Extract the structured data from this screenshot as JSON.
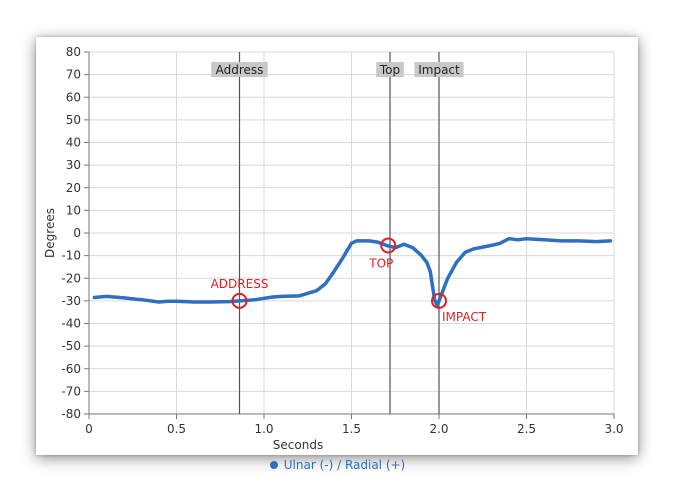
{
  "chart_data": {
    "type": "line",
    "title": "",
    "xlabel": "Seconds",
    "ylabel": "Degrees",
    "xlim": [
      0,
      3.0
    ],
    "ylim": [
      -80,
      80
    ],
    "x_ticks": [
      0,
      0.5,
      1.0,
      1.5,
      2.0,
      2.5,
      3.0
    ],
    "x_tick_labels": [
      "0",
      "0.5",
      "1.0",
      "1.5",
      "2.0",
      "2.5",
      "3.0"
    ],
    "y_ticks": [
      80,
      70,
      60,
      50,
      40,
      30,
      20,
      10,
      0,
      -10,
      -20,
      -30,
      -40,
      -50,
      -60,
      -70,
      -80
    ],
    "y_tick_labels": [
      "80",
      "70",
      "60",
      "50",
      "40",
      "30",
      "20",
      "10",
      "0",
      "-10",
      "-20",
      "-30",
      "-40",
      "-50",
      "-60",
      "-70",
      "-80"
    ],
    "grid": true,
    "legend_position": "bottom",
    "series": [
      {
        "name": "Ulnar (-) / Radial (+)",
        "color": "#2e6fbf",
        "x": [
          0.03,
          0.1,
          0.2,
          0.3,
          0.4,
          0.45,
          0.5,
          0.6,
          0.7,
          0.8,
          0.86,
          0.95,
          1.05,
          1.1,
          1.2,
          1.3,
          1.35,
          1.4,
          1.45,
          1.5,
          1.53,
          1.6,
          1.65,
          1.7,
          1.75,
          1.8,
          1.85,
          1.9,
          1.93,
          1.95,
          1.96,
          1.975,
          1.99,
          2.0,
          2.02,
          2.05,
          2.1,
          2.15,
          2.2,
          2.3,
          2.35,
          2.4,
          2.45,
          2.5,
          2.6,
          2.7,
          2.8,
          2.9,
          2.98
        ],
        "y": [
          -28.5,
          -28,
          -28.7,
          -29.5,
          -30.5,
          -30.2,
          -30.2,
          -30.5,
          -30.5,
          -30.3,
          -30,
          -29.5,
          -28.3,
          -28,
          -27.8,
          -25.5,
          -22.5,
          -17,
          -11,
          -4.5,
          -3.5,
          -3.5,
          -4,
          -5.5,
          -6.5,
          -5,
          -6.5,
          -10,
          -13,
          -17,
          -22,
          -29.5,
          -32,
          -30,
          -26,
          -20,
          -13,
          -8.5,
          -7,
          -5.5,
          -4.5,
          -2.5,
          -3,
          -2.5,
          -3,
          -3.5,
          -3.5,
          -3.8,
          -3.5
        ]
      }
    ],
    "vertical_markers": [
      {
        "label": "Address",
        "x": 0.86
      },
      {
        "label": "Top",
        "x": 1.72
      },
      {
        "label": "Impact",
        "x": 2.0
      }
    ],
    "annotations": [
      {
        "label": "ADDRESS",
        "x": 0.86,
        "y": -30,
        "label_side": "above"
      },
      {
        "label": "TOP",
        "x": 1.71,
        "y": -5.5,
        "label_side": "below"
      },
      {
        "label": "IMPACT",
        "x": 2.0,
        "y": -30,
        "label_side": "below-right"
      }
    ],
    "annotation_color": "#e02020"
  }
}
